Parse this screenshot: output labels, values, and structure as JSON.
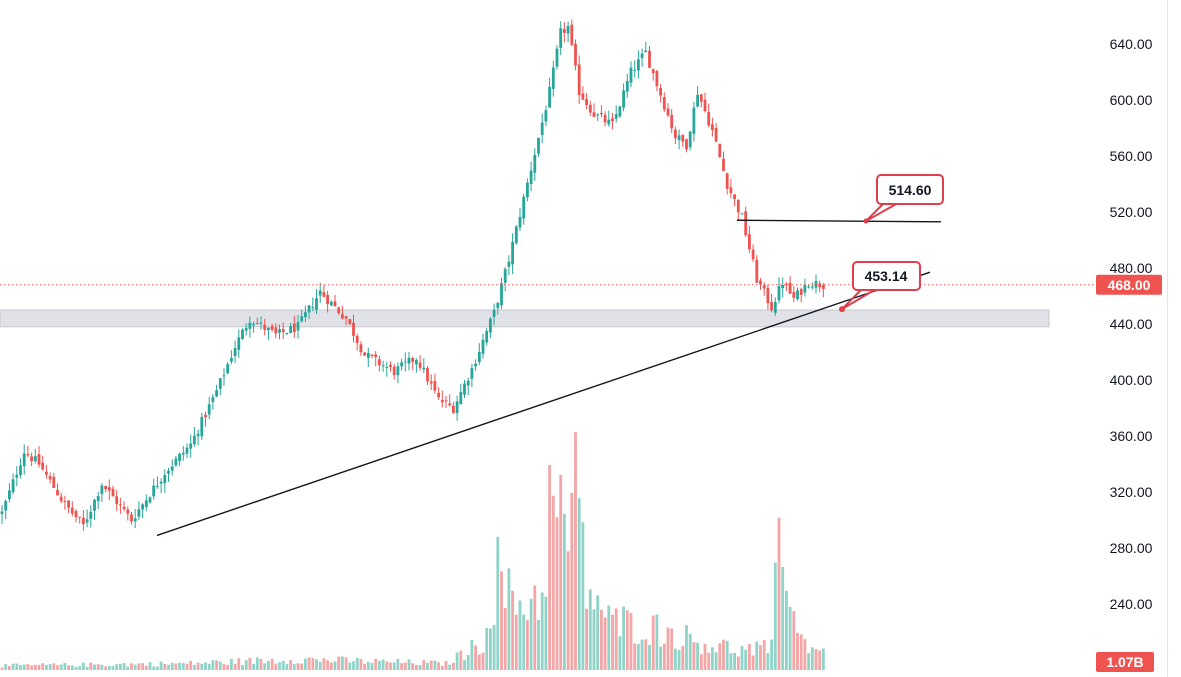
{
  "chart_data": {
    "type": "candlestick",
    "title": "",
    "xlabel": "",
    "ylabel": "",
    "ylim": [
      196,
      672
    ],
    "y_ticks": [
      240,
      280,
      320,
      360,
      400,
      440,
      480,
      520,
      560,
      600,
      640
    ],
    "y_tick_labels": [
      "240.00",
      "280.00",
      "320.00",
      "360.00",
      "400.00",
      "440.00",
      "480.00",
      "520.00",
      "560.00",
      "600.00",
      "640.00"
    ],
    "grid": false,
    "last_price": 468.0,
    "last_price_label": "468.00",
    "volume_label": "1.07B",
    "support_zone": [
      438,
      450
    ],
    "trendline": {
      "start_price": 289,
      "end_price": 477
    },
    "horizontal_level": {
      "price": 514.6
    },
    "annotations": [
      {
        "label": "514.60",
        "price": 514.6
      },
      {
        "label": "453.14",
        "price": 453.14
      }
    ],
    "anchors": [
      {
        "i": 0,
        "p": 305
      },
      {
        "i": 6,
        "p": 349
      },
      {
        "i": 10,
        "p": 340
      },
      {
        "i": 17,
        "p": 311
      },
      {
        "i": 22,
        "p": 296
      },
      {
        "i": 27,
        "p": 326
      },
      {
        "i": 35,
        "p": 300
      },
      {
        "i": 44,
        "p": 334
      },
      {
        "i": 51,
        "p": 354
      },
      {
        "i": 58,
        "p": 392
      },
      {
        "i": 63,
        "p": 424
      },
      {
        "i": 67,
        "p": 444
      },
      {
        "i": 74,
        "p": 432
      },
      {
        "i": 80,
        "p": 438
      },
      {
        "i": 86,
        "p": 463
      },
      {
        "i": 93,
        "p": 444
      },
      {
        "i": 98,
        "p": 418
      },
      {
        "i": 106,
        "p": 406
      },
      {
        "i": 112,
        "p": 416
      },
      {
        "i": 118,
        "p": 386
      },
      {
        "i": 122,
        "p": 380
      },
      {
        "i": 127,
        "p": 408
      },
      {
        "i": 133,
        "p": 448
      },
      {
        "i": 137,
        "p": 486
      },
      {
        "i": 144,
        "p": 562
      },
      {
        "i": 148,
        "p": 606
      },
      {
        "i": 151,
        "p": 648
      },
      {
        "i": 153,
        "p": 652
      },
      {
        "i": 156,
        "p": 606
      },
      {
        "i": 160,
        "p": 590
      },
      {
        "i": 165,
        "p": 582
      },
      {
        "i": 170,
        "p": 620
      },
      {
        "i": 174,
        "p": 634
      },
      {
        "i": 178,
        "p": 604
      },
      {
        "i": 182,
        "p": 574
      },
      {
        "i": 185,
        "p": 568
      },
      {
        "i": 188,
        "p": 606
      },
      {
        "i": 192,
        "p": 578
      },
      {
        "i": 196,
        "p": 540
      },
      {
        "i": 200,
        "p": 516
      },
      {
        "i": 204,
        "p": 472
      },
      {
        "i": 208,
        "p": 452
      },
      {
        "i": 211,
        "p": 470
      },
      {
        "i": 214,
        "p": 458
      },
      {
        "i": 218,
        "p": 470
      },
      {
        "i": 222,
        "p": 468
      }
    ],
    "volume_profile": [
      {
        "i": 0,
        "v": 4
      },
      {
        "i": 50,
        "v": 6
      },
      {
        "i": 80,
        "v": 10
      },
      {
        "i": 120,
        "v": 6
      },
      {
        "i": 130,
        "v": 26
      },
      {
        "i": 134,
        "v": 90
      },
      {
        "i": 138,
        "v": 60
      },
      {
        "i": 146,
        "v": 70
      },
      {
        "i": 148,
        "v": 150
      },
      {
        "i": 152,
        "v": 130
      },
      {
        "i": 155,
        "v": 160
      },
      {
        "i": 158,
        "v": 80
      },
      {
        "i": 164,
        "v": 45
      },
      {
        "i": 175,
        "v": 40
      },
      {
        "i": 190,
        "v": 25
      },
      {
        "i": 200,
        "v": 18
      },
      {
        "i": 208,
        "v": 20
      },
      {
        "i": 210,
        "v": 120
      },
      {
        "i": 212,
        "v": 112
      },
      {
        "i": 215,
        "v": 30
      },
      {
        "i": 222,
        "v": 18
      }
    ],
    "volume_max": 160,
    "up_color": "#26a69a",
    "down_color": "#ef5350"
  }
}
